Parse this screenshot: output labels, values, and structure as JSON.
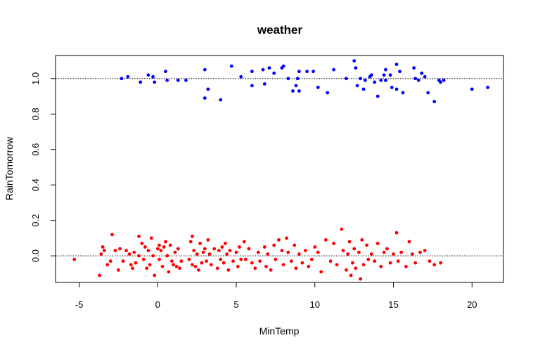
{
  "chart_data": {
    "type": "scatter",
    "title": "weather",
    "xlabel": "MinTemp",
    "ylabel": "RainTomorrow",
    "xlim": [
      -6.5,
      22
    ],
    "ylim": [
      -0.15,
      1.13
    ],
    "xticks": [
      -5,
      0,
      5,
      10,
      15,
      20
    ],
    "yticks": [
      0.0,
      0.2,
      0.4,
      0.6,
      0.8,
      1.0
    ],
    "xtick_labels": [
      "-5",
      "0",
      "5",
      "10",
      "15",
      "20"
    ],
    "ytick_labels": [
      "0.0",
      "0.2",
      "0.4",
      "0.6",
      "0.8",
      "1.0"
    ],
    "reference_lines": [
      0,
      1
    ],
    "grid": false,
    "legend": "none",
    "series": [
      {
        "color": "#0000ff",
        "points": [
          [
            -2.3,
            1.0
          ],
          [
            -1.9,
            1.01
          ],
          [
            -1.1,
            0.98
          ],
          [
            -0.6,
            1.02
          ],
          [
            -0.3,
            1.01
          ],
          [
            -0.2,
            0.98
          ],
          [
            0.5,
            1.04
          ],
          [
            0.6,
            0.99
          ],
          [
            1.3,
            0.99
          ],
          [
            1.8,
            0.99
          ],
          [
            3.0,
            1.05
          ],
          [
            3.0,
            0.89
          ],
          [
            3.2,
            0.94
          ],
          [
            4.0,
            0.88
          ],
          [
            4.7,
            1.07
          ],
          [
            5.3,
            1.01
          ],
          [
            6.0,
            1.04
          ],
          [
            6.0,
            0.96
          ],
          [
            6.7,
            1.05
          ],
          [
            6.8,
            0.97
          ],
          [
            7.1,
            1.06
          ],
          [
            7.4,
            1.03
          ],
          [
            7.9,
            1.06
          ],
          [
            8.0,
            1.07
          ],
          [
            8.3,
            1.0
          ],
          [
            8.6,
            0.93
          ],
          [
            8.8,
            0.96
          ],
          [
            8.9,
            1.0
          ],
          [
            9.0,
            1.04
          ],
          [
            9.0,
            0.93
          ],
          [
            9.5,
            1.04
          ],
          [
            9.9,
            1.04
          ],
          [
            10.2,
            0.95
          ],
          [
            10.8,
            0.92
          ],
          [
            11.2,
            1.05
          ],
          [
            12.0,
            1.0
          ],
          [
            12.5,
            1.1
          ],
          [
            12.6,
            1.06
          ],
          [
            12.7,
            0.96
          ],
          [
            12.9,
            1.0
          ],
          [
            13.1,
            0.94
          ],
          [
            13.2,
            0.99
          ],
          [
            13.5,
            1.01
          ],
          [
            13.6,
            1.02
          ],
          [
            13.8,
            0.98
          ],
          [
            14.0,
            0.9
          ],
          [
            14.2,
            0.99
          ],
          [
            14.4,
            1.02
          ],
          [
            14.5,
            1.05
          ],
          [
            14.5,
            0.99
          ],
          [
            14.8,
            1.02
          ],
          [
            14.9,
            0.95
          ],
          [
            15.2,
            1.08
          ],
          [
            15.2,
            0.94
          ],
          [
            15.4,
            1.04
          ],
          [
            15.6,
            0.92
          ],
          [
            16.3,
            1.06
          ],
          [
            16.4,
            1.0
          ],
          [
            16.6,
            0.99
          ],
          [
            16.8,
            1.03
          ],
          [
            17.0,
            1.01
          ],
          [
            17.2,
            0.92
          ],
          [
            17.6,
            0.87
          ],
          [
            17.9,
            0.99
          ],
          [
            18.0,
            0.98
          ],
          [
            18.2,
            0.99
          ],
          [
            20.0,
            0.94
          ],
          [
            21.0,
            0.95
          ]
        ]
      },
      {
        "color": "#ff0000",
        "points": [
          [
            -5.3,
            -0.02
          ],
          [
            -3.7,
            -0.11
          ],
          [
            -3.6,
            0.01
          ],
          [
            -3.5,
            0.05
          ],
          [
            -3.4,
            0.03
          ],
          [
            -3.2,
            -0.05
          ],
          [
            -3.0,
            -0.03
          ],
          [
            -2.9,
            0.12
          ],
          [
            -2.7,
            0.03
          ],
          [
            -2.5,
            -0.08
          ],
          [
            -2.4,
            0.04
          ],
          [
            -2.2,
            -0.03
          ],
          [
            -2.0,
            0.03
          ],
          [
            -1.8,
            0.01
          ],
          [
            -1.7,
            -0.05
          ],
          [
            -1.6,
            -0.07
          ],
          [
            -1.5,
            0.02
          ],
          [
            -1.4,
            -0.04
          ],
          [
            -1.2,
            0.0
          ],
          [
            -1.2,
            0.11
          ],
          [
            -1.0,
            0.07
          ],
          [
            -0.9,
            -0.02
          ],
          [
            -0.8,
            0.05
          ],
          [
            -0.7,
            -0.07
          ],
          [
            -0.6,
            0.03
          ],
          [
            -0.5,
            -0.05
          ],
          [
            -0.4,
            0.1
          ],
          [
            -0.3,
            0.0
          ],
          [
            -0.2,
            -0.11
          ],
          [
            0.0,
            0.04
          ],
          [
            0.1,
            0.06
          ],
          [
            0.1,
            -0.02
          ],
          [
            0.2,
            0.03
          ],
          [
            0.3,
            -0.06
          ],
          [
            0.4,
            0.05
          ],
          [
            0.5,
            0.08
          ],
          [
            0.6,
            0.0
          ],
          [
            0.7,
            -0.09
          ],
          [
            0.8,
            0.06
          ],
          [
            0.9,
            -0.03
          ],
          [
            1.0,
            -0.05
          ],
          [
            1.1,
            0.02
          ],
          [
            1.2,
            -0.06
          ],
          [
            1.3,
            0.04
          ],
          [
            1.4,
            -0.07
          ],
          [
            1.5,
            -0.03
          ],
          [
            2.0,
            -0.02
          ],
          [
            2.1,
            0.08
          ],
          [
            2.2,
            -0.05
          ],
          [
            2.2,
            0.11
          ],
          [
            2.3,
            0.03
          ],
          [
            2.4,
            -0.06
          ],
          [
            2.5,
            0.01
          ],
          [
            2.6,
            -0.08
          ],
          [
            2.7,
            0.07
          ],
          [
            2.8,
            -0.04
          ],
          [
            2.9,
            0.02
          ],
          [
            3.0,
            0.04
          ],
          [
            3.1,
            -0.03
          ],
          [
            3.2,
            0.09
          ],
          [
            3.3,
            0.01
          ],
          [
            3.4,
            -0.05
          ],
          [
            3.6,
            0.04
          ],
          [
            3.8,
            -0.07
          ],
          [
            3.9,
            0.03
          ],
          [
            4.0,
            -0.02
          ],
          [
            4.1,
            0.05
          ],
          [
            4.2,
            -0.04
          ],
          [
            4.3,
            0.07
          ],
          [
            4.4,
            0.01
          ],
          [
            4.5,
            -0.08
          ],
          [
            4.6,
            0.03
          ],
          [
            4.8,
            -0.03
          ],
          [
            5.0,
            0.02
          ],
          [
            5.1,
            -0.06
          ],
          [
            5.2,
            0.05
          ],
          [
            5.3,
            -0.02
          ],
          [
            5.5,
            0.08
          ],
          [
            5.6,
            -0.02
          ],
          [
            5.8,
            0.04
          ],
          [
            6.0,
            -0.04
          ],
          [
            6.2,
            -0.07
          ],
          [
            6.4,
            0.02
          ],
          [
            6.5,
            -0.03
          ],
          [
            6.8,
            0.05
          ],
          [
            6.9,
            -0.06
          ],
          [
            7.0,
            0.01
          ],
          [
            7.2,
            -0.08
          ],
          [
            7.4,
            0.06
          ],
          [
            7.5,
            -0.02
          ],
          [
            7.7,
            0.09
          ],
          [
            7.9,
            0.03
          ],
          [
            8.0,
            -0.05
          ],
          [
            8.2,
            0.1
          ],
          [
            8.3,
            0.02
          ],
          [
            8.5,
            -0.03
          ],
          [
            8.7,
            0.06
          ],
          [
            8.8,
            -0.07
          ],
          [
            9.0,
            0.01
          ],
          [
            9.2,
            -0.04
          ],
          [
            9.4,
            0.03
          ],
          [
            9.6,
            -0.06
          ],
          [
            9.8,
            -0.02
          ],
          [
            10.0,
            0.05
          ],
          [
            10.2,
            0.02
          ],
          [
            10.4,
            -0.09
          ],
          [
            10.7,
            0.09
          ],
          [
            11.0,
            -0.03
          ],
          [
            11.2,
            0.07
          ],
          [
            11.4,
            -0.05
          ],
          [
            11.7,
            0.15
          ],
          [
            11.8,
            0.03
          ],
          [
            12.0,
            -0.08
          ],
          [
            12.1,
            0.01
          ],
          [
            12.2,
            0.08
          ],
          [
            12.3,
            -0.11
          ],
          [
            12.4,
            -0.04
          ],
          [
            12.5,
            0.04
          ],
          [
            12.6,
            -0.07
          ],
          [
            12.8,
            0.02
          ],
          [
            12.9,
            -0.13
          ],
          [
            13.0,
            0.09
          ],
          [
            13.1,
            -0.05
          ],
          [
            13.3,
            0.06
          ],
          [
            13.4,
            -0.02
          ],
          [
            13.6,
            0.01
          ],
          [
            13.8,
            -0.03
          ],
          [
            14.0,
            0.07
          ],
          [
            14.2,
            -0.06
          ],
          [
            14.4,
            0.02
          ],
          [
            14.6,
            0.04
          ],
          [
            14.8,
            -0.04
          ],
          [
            15.0,
            0.01
          ],
          [
            15.2,
            0.13
          ],
          [
            15.3,
            -0.03
          ],
          [
            15.5,
            0.02
          ],
          [
            15.8,
            -0.06
          ],
          [
            16.0,
            0.08
          ],
          [
            16.2,
            0.01
          ],
          [
            16.4,
            -0.04
          ],
          [
            16.7,
            0.02
          ],
          [
            17.0,
            0.03
          ],
          [
            17.3,
            -0.03
          ],
          [
            17.6,
            -0.05
          ],
          [
            18.0,
            -0.04
          ]
        ]
      }
    ]
  }
}
